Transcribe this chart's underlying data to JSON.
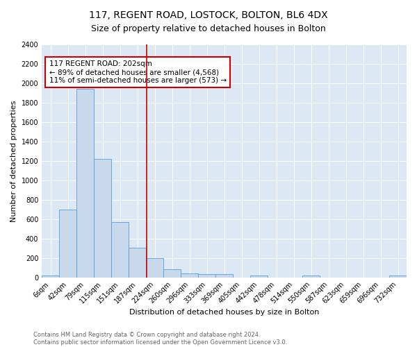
{
  "title": "117, REGENT ROAD, LOSTOCK, BOLTON, BL6 4DX",
  "subtitle": "Size of property relative to detached houses in Bolton",
  "xlabel": "Distribution of detached houses by size in Bolton",
  "ylabel": "Number of detached properties",
  "bin_labels": [
    "6sqm",
    "42sqm",
    "79sqm",
    "115sqm",
    "151sqm",
    "187sqm",
    "224sqm",
    "260sqm",
    "296sqm",
    "333sqm",
    "369sqm",
    "405sqm",
    "442sqm",
    "478sqm",
    "514sqm",
    "550sqm",
    "587sqm",
    "623sqm",
    "659sqm",
    "696sqm",
    "732sqm"
  ],
  "bar_heights": [
    20,
    700,
    1940,
    1220,
    570,
    305,
    200,
    80,
    40,
    35,
    35,
    0,
    20,
    0,
    0,
    20,
    0,
    0,
    0,
    0,
    20
  ],
  "bar_color": "#c9d9ec",
  "bar_edge_color": "#5b9bd5",
  "vline_x": 5.55,
  "vline_color": "#cc0000",
  "annotation_text": "117 REGENT ROAD: 202sqm\n← 89% of detached houses are smaller (4,568)\n11% of semi-detached houses are larger (573) →",
  "annotation_box_color": "#ffffff",
  "annotation_box_edge": "#cc0000",
  "ylim": [
    0,
    2400
  ],
  "yticks": [
    0,
    200,
    400,
    600,
    800,
    1000,
    1200,
    1400,
    1600,
    1800,
    2000,
    2200,
    2400
  ],
  "footer": "Contains HM Land Registry data © Crown copyright and database right 2024.\nContains public sector information licensed under the Open Government Licence v3.0.",
  "fig_bg_color": "#ffffff",
  "bg_color": "#dce9f5",
  "grid_color": "#ffffff",
  "title_fontsize": 10,
  "subtitle_fontsize": 9,
  "tick_fontsize": 7,
  "ylabel_fontsize": 8,
  "xlabel_fontsize": 8,
  "footer_fontsize": 6,
  "annot_fontsize": 7.5
}
